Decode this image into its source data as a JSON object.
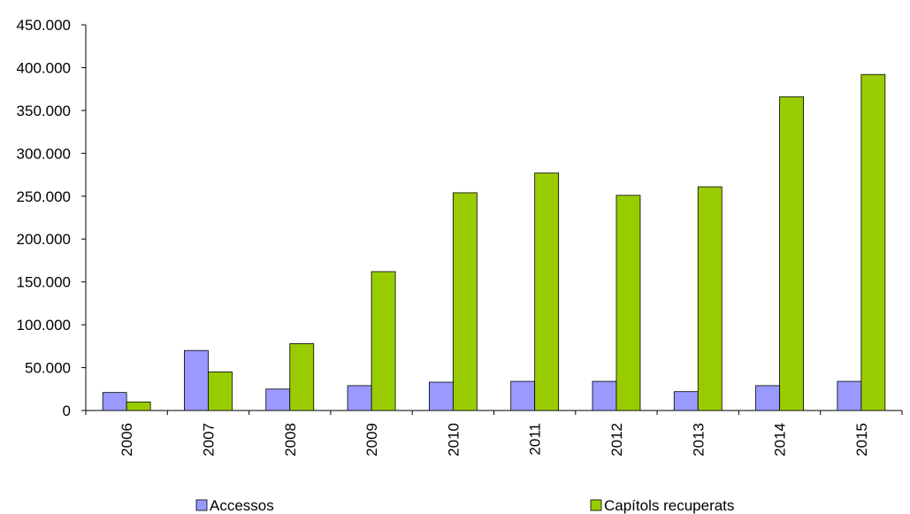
{
  "chart_data": {
    "type": "bar",
    "categories": [
      "2006",
      "2007",
      "2008",
      "2009",
      "2010",
      "2011",
      "2012",
      "2013",
      "2014",
      "2015"
    ],
    "series": [
      {
        "name": "Accessos",
        "color": "#9999ff",
        "values": [
          21000,
          70000,
          25000,
          29000,
          33000,
          34000,
          34000,
          22000,
          29000,
          34000
        ]
      },
      {
        "name": "Capítols recuperats",
        "color": "#99cc00",
        "values": [
          10000,
          45000,
          78000,
          162000,
          254000,
          277000,
          251000,
          261000,
          366000,
          392000
        ]
      }
    ],
    "yticks": [
      "0",
      "50.000",
      "100.000",
      "150.000",
      "200.000",
      "250.000",
      "300.000",
      "350.000",
      "400.000",
      "450.000"
    ],
    "ylim": [
      0,
      450000
    ],
    "title": "",
    "xlabel": "",
    "ylabel": "",
    "grid": false,
    "legend_position": "bottom"
  }
}
